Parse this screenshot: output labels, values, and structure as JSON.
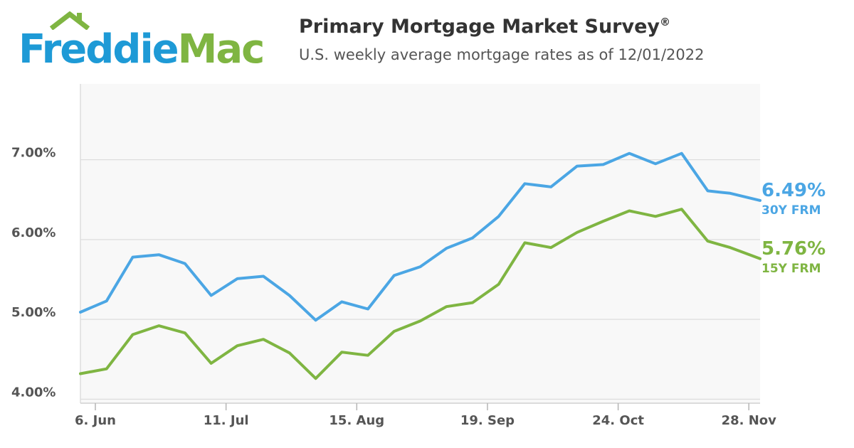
{
  "logo": {
    "part1": "Freddie",
    "part2": "Mac"
  },
  "header": {
    "title": "Primary Mortgage Market Survey",
    "title_mark": "®",
    "subtitle": "U.S. weekly average mortgage rates as of 12/01/2022"
  },
  "colors": {
    "fixed30": "#4ba6e4",
    "fixed15": "#7fb542",
    "plot_bg": "#f8f8f8",
    "grid": "#dddddd",
    "brand_blue": "#1e9ad6",
    "brand_green": "#7fb542"
  },
  "chart_data": {
    "type": "line",
    "x_start": "2022-06-02",
    "x_end": "2022-12-01",
    "x_ticks": [
      {
        "date": "2022-06-06",
        "label": "6. Jun"
      },
      {
        "date": "2022-07-11",
        "label": "11. Jul"
      },
      {
        "date": "2022-08-15",
        "label": "15. Aug"
      },
      {
        "date": "2022-09-19",
        "label": "19. Sep"
      },
      {
        "date": "2022-10-24",
        "label": "24. Oct"
      },
      {
        "date": "2022-11-28",
        "label": "28. Nov"
      }
    ],
    "y_range": [
      3.95,
      7.95
    ],
    "y_ticks": [
      {
        "value": 4.0,
        "label": "4.00%"
      },
      {
        "value": 5.0,
        "label": "5.00%"
      },
      {
        "value": 6.0,
        "label": "6.00%"
      },
      {
        "value": 7.0,
        "label": "7.00%"
      }
    ],
    "grid": true,
    "x": [
      "2022-06-02",
      "2022-06-09",
      "2022-06-16",
      "2022-06-23",
      "2022-06-30",
      "2022-07-07",
      "2022-07-14",
      "2022-07-21",
      "2022-07-28",
      "2022-08-04",
      "2022-08-11",
      "2022-08-18",
      "2022-08-25",
      "2022-09-01",
      "2022-09-08",
      "2022-09-15",
      "2022-09-22",
      "2022-09-29",
      "2022-10-06",
      "2022-10-13",
      "2022-10-20",
      "2022-10-27",
      "2022-11-03",
      "2022-11-10",
      "2022-11-17",
      "2022-11-23",
      "2022-12-01"
    ],
    "series": [
      {
        "name": "30Y FRM",
        "end_label": "6.49%",
        "values": [
          5.09,
          5.23,
          5.78,
          5.81,
          5.7,
          5.3,
          5.51,
          5.54,
          5.3,
          4.99,
          5.22,
          5.13,
          5.55,
          5.66,
          5.89,
          6.02,
          6.29,
          6.7,
          6.66,
          6.92,
          6.94,
          7.08,
          6.95,
          7.08,
          6.61,
          6.58,
          6.49
        ]
      },
      {
        "name": "15Y FRM",
        "end_label": "5.76%",
        "values": [
          4.32,
          4.38,
          4.81,
          4.92,
          4.83,
          4.45,
          4.67,
          4.75,
          4.58,
          4.26,
          4.59,
          4.55,
          4.85,
          4.98,
          5.16,
          5.21,
          5.44,
          5.96,
          5.9,
          6.09,
          6.23,
          6.36,
          6.29,
          6.38,
          5.98,
          5.9,
          5.76
        ]
      }
    ]
  }
}
